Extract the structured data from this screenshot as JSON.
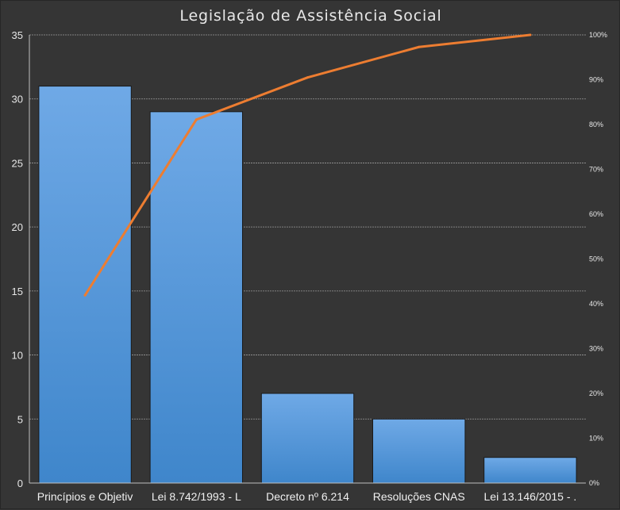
{
  "chart_data": {
    "type": "bar",
    "title": "Legislação de Assistência Social",
    "categories": [
      "Princípios e Objetiv",
      "Lei 8.742/1993 - L",
      "Decreto nº 6.214",
      "Resoluções CNAS",
      "Lei 13.146/2015 - ."
    ],
    "series": [
      {
        "values": [
          31,
          29,
          7,
          5,
          2
        ]
      },
      {
        "values": [
          41.9,
          81.1,
          90.5,
          97.3,
          100
        ],
        "axis": "right",
        "type": "line"
      }
    ],
    "ylim": [
      0,
      35
    ],
    "yticks": [
      "0",
      "5",
      "10",
      "15",
      "20",
      "25",
      "30",
      "35"
    ],
    "y2lim": [
      0,
      100
    ],
    "y2ticks": [
      "0%",
      "10%",
      "20%",
      "30%",
      "40%",
      "50%",
      "60%",
      "70%",
      "80%",
      "90%",
      "100%"
    ],
    "grid": true,
    "colors": {
      "background": "#353535",
      "bar_top": "#6fa9e6",
      "bar_bottom": "#3f86cb",
      "line": "#ed7d31",
      "grid": "#9a9a9a",
      "text": "#e6e6e6"
    }
  }
}
